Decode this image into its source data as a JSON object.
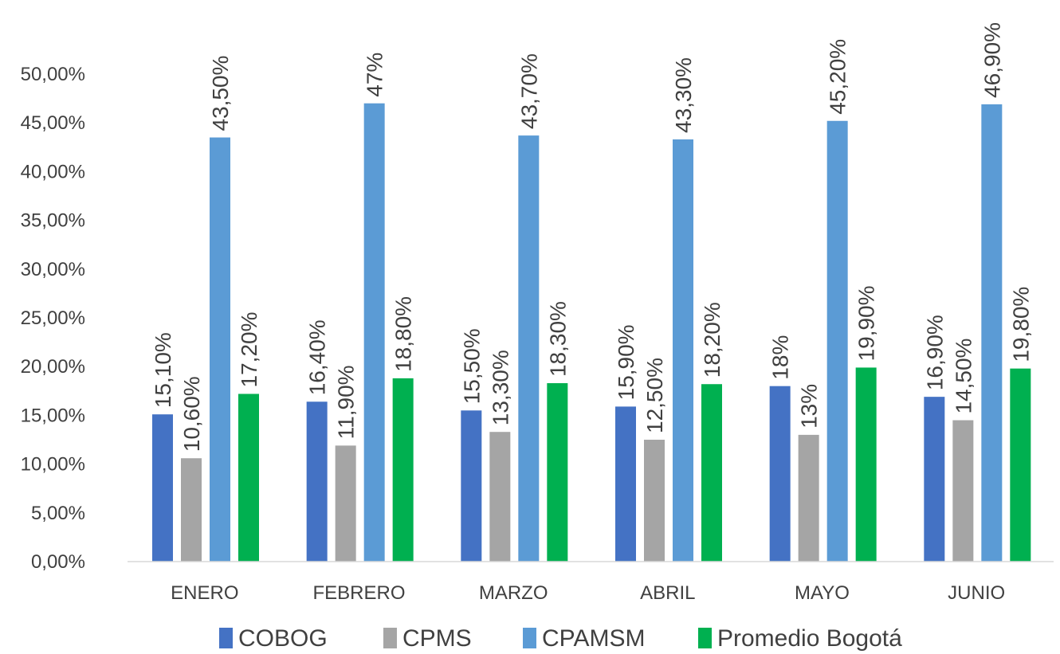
{
  "chart_data": {
    "type": "bar",
    "title": "",
    "xlabel": "",
    "ylabel": "",
    "ylim": [
      0,
      50
    ],
    "y_ticks": [
      "0,00%",
      "5,00%",
      "10,00%",
      "15,00%",
      "20,00%",
      "25,00%",
      "30,00%",
      "35,00%",
      "40,00%",
      "45,00%",
      "50,00%"
    ],
    "categories": [
      "ENERO",
      "FEBRERO",
      "MARZO",
      "ABRIL",
      "MAYO",
      "JUNIO"
    ],
    "grid": false,
    "legend_position": "bottom",
    "series": [
      {
        "name": "COBOG",
        "color": "#4472C4",
        "values": [
          15.1,
          16.4,
          15.5,
          15.9,
          18.0,
          16.9
        ],
        "labels": [
          "15,10%",
          "16,40%",
          "15,50%",
          "15,90%",
          "18%",
          "16,90%"
        ]
      },
      {
        "name": "CPMS",
        "color": "#A5A5A5",
        "values": [
          10.6,
          11.9,
          13.3,
          12.5,
          13.0,
          14.5
        ],
        "labels": [
          "10,60%",
          "11,90%",
          "13,30%",
          "12,50%",
          "13%",
          "14,50%"
        ]
      },
      {
        "name": "CPAMSM",
        "color": "#5B9BD5",
        "values": [
          43.5,
          47.0,
          43.7,
          43.3,
          45.2,
          46.9
        ],
        "labels": [
          "43,50%",
          "47%",
          "43,70%",
          "43,30%",
          "45,20%",
          "46,90%"
        ]
      },
      {
        "name": "Promedio Bogotá",
        "color": "#00B050",
        "values": [
          17.2,
          18.8,
          18.3,
          18.2,
          19.9,
          19.8
        ],
        "labels": [
          "17,20%",
          "18,80%",
          "18,30%",
          "18,20%",
          "19,90%",
          "19,80%"
        ]
      }
    ]
  }
}
